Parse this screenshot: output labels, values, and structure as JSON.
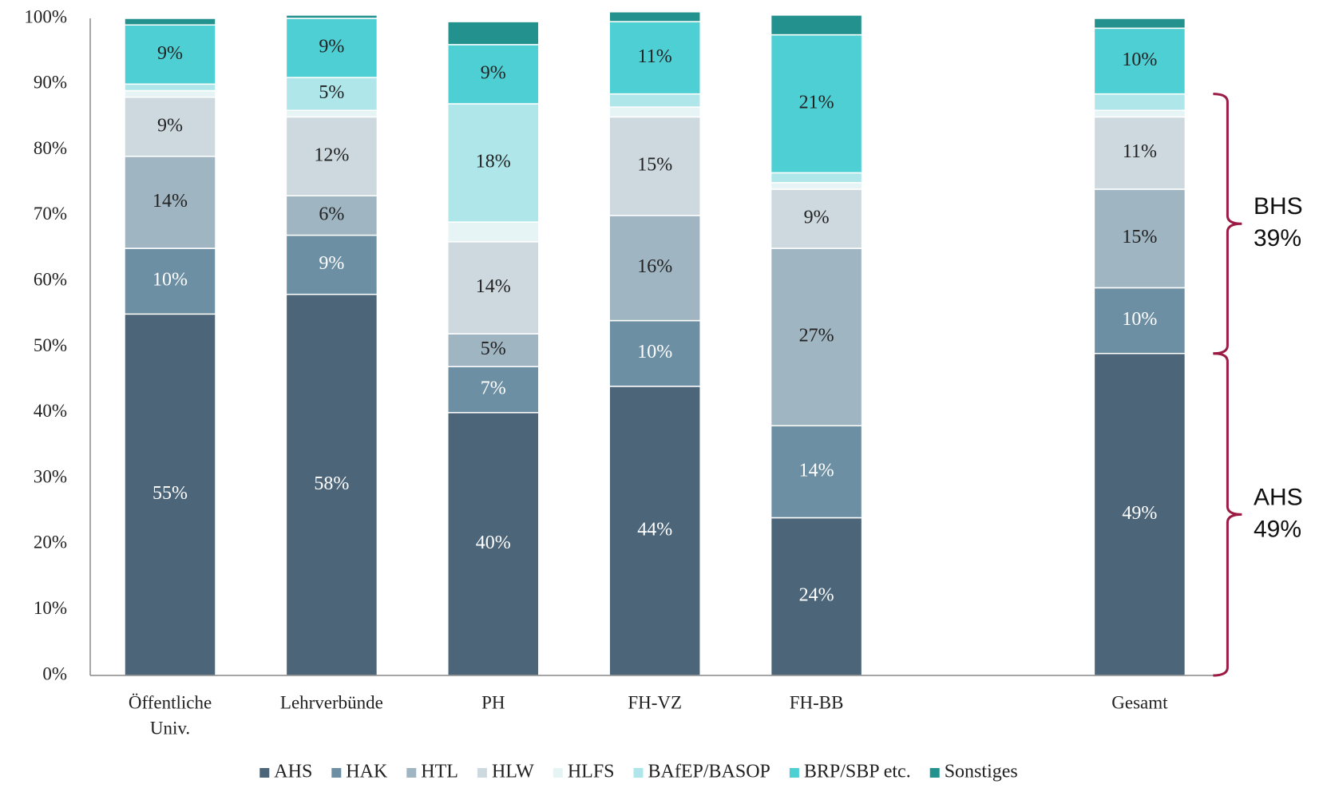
{
  "chart_data": {
    "type": "stacked_bar",
    "categories": [
      [
        "Öffentliche",
        "Univ."
      ],
      "Lehrverbünde",
      "PH",
      "FH-VZ",
      "FH-BB",
      null,
      "Gesamt"
    ],
    "ylim": [
      0,
      100
    ],
    "yticks": [
      {
        "value": 0,
        "label": "0%"
      },
      {
        "value": 10,
        "label": "10%"
      },
      {
        "value": 20,
        "label": "20%"
      },
      {
        "value": 30,
        "label": "30%"
      },
      {
        "value": 40,
        "label": "40%"
      },
      {
        "value": 50,
        "label": "50%"
      },
      {
        "value": 60,
        "label": "60%"
      },
      {
        "value": 70,
        "label": "70%"
      },
      {
        "value": 80,
        "label": "80%"
      },
      {
        "value": 90,
        "label": "90%"
      },
      {
        "value": 100,
        "label": "100%"
      }
    ],
    "series": [
      {
        "name": "AHS",
        "color": "#4c6578",
        "values": [
          55,
          58,
          40,
          44,
          24,
          null,
          49
        ],
        "value_labels": [
          "55%",
          "58%",
          "40%",
          "44%",
          "24%",
          null,
          "49%"
        ]
      },
      {
        "name": "HAK",
        "color": "#6d8fa3",
        "values": [
          10,
          9,
          7,
          10,
          14,
          null,
          10
        ],
        "value_labels": [
          "10%",
          "9%",
          "7%",
          "10%",
          "14%",
          null,
          "10%"
        ]
      },
      {
        "name": "HTL",
        "color": "#a0b5c2",
        "values": [
          14,
          6,
          5,
          16,
          27,
          null,
          15
        ],
        "value_labels": [
          "14%",
          "6%",
          "5%",
          "16%",
          "27%",
          null,
          "15%"
        ]
      },
      {
        "name": "HLW",
        "color": "#cdd8df",
        "values": [
          9,
          12,
          14,
          15,
          9,
          null,
          11
        ],
        "value_labels": [
          "9%",
          "12%",
          "14%",
          "15%",
          "9%",
          null,
          "11%"
        ]
      },
      {
        "name": "HLFS",
        "color": "#e6f4f5",
        "values": [
          1,
          1,
          3,
          1.5,
          1,
          null,
          1
        ],
        "value_labels": [
          null,
          null,
          null,
          null,
          null,
          null,
          null
        ]
      },
      {
        "name": "BAfEP/BASOP",
        "color": "#aee6ea",
        "values": [
          1,
          5,
          18,
          2,
          1.5,
          null,
          2.5
        ],
        "value_labels": [
          null,
          "5%",
          "18%",
          null,
          null,
          null,
          null
        ]
      },
      {
        "name": "BRP/SBP etc.",
        "color": "#4ecfd4",
        "values": [
          9,
          9,
          9,
          11,
          21,
          null,
          10
        ],
        "value_labels": [
          "9%",
          "9%",
          "9%",
          "11%",
          "21%",
          null,
          "10%"
        ]
      },
      {
        "name": "Sonstiges",
        "color": "#23928f",
        "values": [
          1,
          0.5,
          3.5,
          1.5,
          3,
          null,
          1.5
        ],
        "value_labels": [
          null,
          null,
          null,
          null,
          null,
          null,
          null
        ]
      }
    ],
    "annotations": [
      {
        "label": "BHS",
        "value": 39,
        "value_label": "39%"
      },
      {
        "label": "AHS",
        "value": 49,
        "value_label": "49%"
      }
    ],
    "brace_color": "#9b1b45"
  }
}
